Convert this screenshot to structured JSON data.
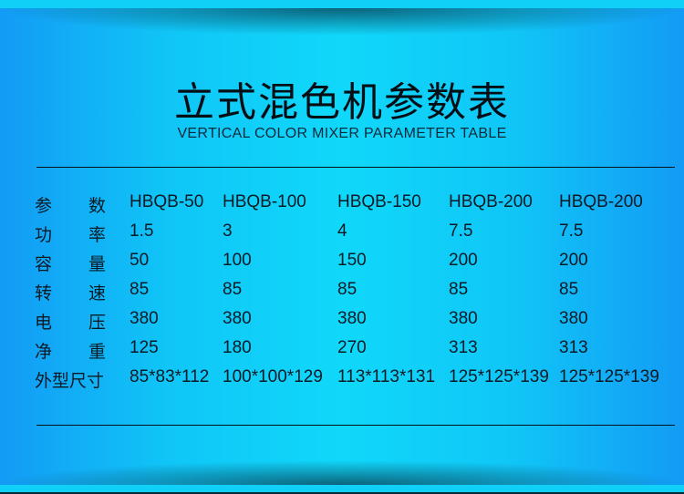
{
  "title": "立式混色机参数表",
  "subtitle": "VERTICAL COLOR MIXER PARAMETER TABLE",
  "table": {
    "rows": [
      {
        "label": [
          "参",
          "数"
        ],
        "values": [
          "HBQB-50",
          "HBQB-100",
          "HBQB-150",
          "HBQB-200",
          "HBQB-200"
        ]
      },
      {
        "label": [
          "功",
          "率"
        ],
        "values": [
          "1.5",
          "3",
          "4",
          "7.5",
          "7.5"
        ]
      },
      {
        "label": [
          "容",
          "量"
        ],
        "values": [
          "50",
          "100",
          "150",
          "200",
          "200"
        ]
      },
      {
        "label": [
          "转",
          "速"
        ],
        "values": [
          "85",
          "85",
          "85",
          "85",
          "85"
        ]
      },
      {
        "label": [
          "电",
          "压"
        ],
        "values": [
          "380",
          "380",
          "380",
          "380",
          "380"
        ]
      },
      {
        "label": [
          "净",
          "重"
        ],
        "values": [
          "125",
          "180",
          "270",
          "313",
          "313"
        ]
      },
      {
        "label": [
          "外型尺寸"
        ],
        "values": [
          "85*83*112",
          "100*100*129",
          "113*113*131",
          "125*125*139",
          "125*125*139"
        ]
      }
    ]
  },
  "colors": {
    "background_center": "#10d8fa",
    "background_edge": "#139bf5",
    "text": "#0a1a24"
  }
}
